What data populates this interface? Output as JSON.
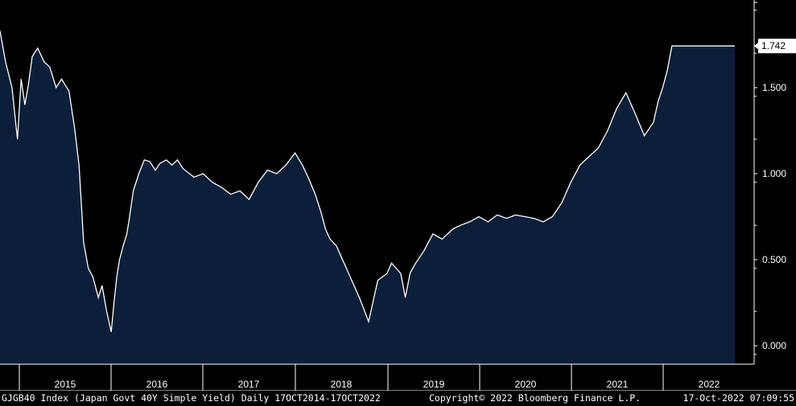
{
  "footer": {
    "left": "GJGB40 Index (Japan Govt 40Y Simple Yield)  Daily 17OCT2014-17OCT2022",
    "center": "Copyright© 2022 Bloomberg Finance L.P.",
    "right": "17-Oct-2022 07:09:55"
  },
  "colors": {
    "background": "#000000",
    "area_fill": "#0b1f3a",
    "line": "#ffffff",
    "last_value_box": "#ffffff"
  },
  "chart_data": {
    "type": "area",
    "title": "",
    "xlabel": "",
    "ylabel": "",
    "ylim": [
      -0.1,
      2.0
    ],
    "y_ticks": [
      "0.000",
      "0.500",
      "1.000",
      "1.500"
    ],
    "x_ticks": [
      "2015",
      "2016",
      "2017",
      "2018",
      "2019",
      "2020",
      "2021",
      "2022"
    ],
    "last_value_label": "1.742",
    "grid": false,
    "series": [
      {
        "x": [
          2014.79,
          2014.85,
          2014.92,
          2014.98,
          2015.02,
          2015.06,
          2015.1,
          2015.14,
          2015.2,
          2015.27,
          2015.33,
          2015.36,
          2015.4,
          2015.46,
          2015.54,
          2015.6,
          2015.65,
          2015.7,
          2015.75,
          2015.8,
          2015.86,
          2015.9,
          2015.95,
          2016.0,
          2016.03,
          2016.06,
          2016.09,
          2016.13,
          2016.17,
          2016.2,
          2016.24,
          2016.3,
          2016.36,
          2016.42,
          2016.48,
          2016.53,
          2016.6,
          2016.66,
          2016.72,
          2016.78,
          2016.85,
          2016.9,
          2017.0,
          2017.1,
          2017.2,
          2017.3,
          2017.4,
          2017.5,
          2017.6,
          2017.7,
          2017.8,
          2017.9,
          2018.0,
          2018.08,
          2018.15,
          2018.22,
          2018.28,
          2018.33,
          2018.38,
          2018.45,
          2018.5,
          2018.6,
          2018.7,
          2018.8,
          2018.9,
          2019.0,
          2019.05,
          2019.1,
          2019.15,
          2019.2,
          2019.25,
          2019.3,
          2019.4,
          2019.5,
          2019.6,
          2019.66,
          2019.72,
          2019.8,
          2019.9,
          2020.0,
          2020.1,
          2020.2,
          2020.3,
          2020.4,
          2020.5,
          2020.6,
          2020.7,
          2020.8,
          2020.9,
          2021.0,
          2021.1,
          2021.2,
          2021.3,
          2021.4,
          2021.5,
          2021.6,
          2021.7,
          2021.8,
          2021.9,
          2021.95,
          2022.0,
          2022.05,
          2022.1,
          2022.15,
          2022.2,
          2022.25,
          2022.3,
          2022.35,
          2022.4,
          2022.45,
          2022.5,
          2022.55,
          2022.6,
          2022.65,
          2022.7,
          2022.75,
          2022.79
        ],
        "y": [
          1.83,
          1.65,
          1.5,
          1.2,
          1.55,
          1.4,
          1.52,
          1.68,
          1.73,
          1.65,
          1.62,
          1.57,
          1.5,
          1.55,
          1.48,
          1.27,
          1.05,
          0.6,
          0.45,
          0.4,
          0.28,
          0.35,
          0.2,
          0.08,
          0.25,
          0.4,
          0.5,
          0.58,
          0.65,
          0.75,
          0.9,
          1.0,
          1.08,
          1.07,
          1.02,
          1.06,
          1.08,
          1.05,
          1.08,
          1.03,
          1.0,
          0.98,
          1.0,
          0.95,
          0.92,
          0.88,
          0.9,
          0.85,
          0.95,
          1.02,
          1.0,
          1.05,
          1.12,
          1.05,
          0.97,
          0.88,
          0.78,
          0.68,
          0.62,
          0.58,
          0.52,
          0.4,
          0.28,
          0.14,
          0.38,
          0.42,
          0.48,
          0.45,
          0.42,
          0.28,
          0.42,
          0.47,
          0.55,
          0.65,
          0.62,
          0.65,
          0.68,
          0.7,
          0.72,
          0.75,
          0.72,
          0.76,
          0.74,
          0.76,
          0.75,
          0.74,
          0.72,
          0.75,
          0.83,
          0.95,
          1.05,
          1.1,
          1.15,
          1.25,
          1.38,
          1.47,
          1.35,
          1.22,
          1.3,
          1.42,
          1.5,
          1.6,
          1.742,
          1.742,
          1.742,
          1.742,
          1.742,
          1.742,
          1.742,
          1.742,
          1.742,
          1.742,
          1.742,
          1.742,
          1.742,
          1.742,
          1.742
        ]
      }
    ]
  }
}
